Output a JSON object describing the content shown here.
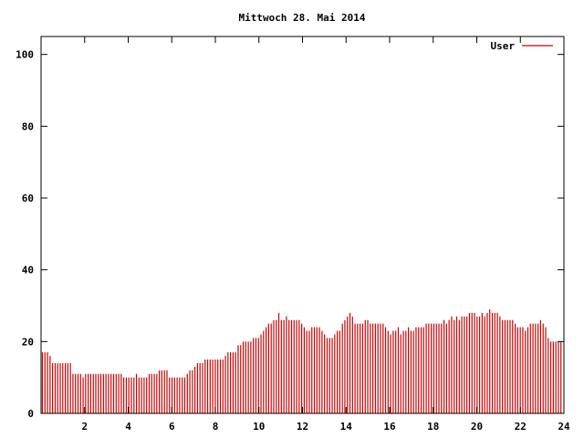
{
  "chart_data": {
    "type": "bar",
    "title": "Mittwoch 28. Mai 2014",
    "xlabel": "",
    "ylabel": "",
    "xlim": [
      0,
      24
    ],
    "ylim": [
      0,
      105
    ],
    "x_ticks": [
      "2",
      "4",
      "6",
      "8",
      "10",
      "12",
      "14",
      "16",
      "18",
      "20",
      "22",
      "24"
    ],
    "y_ticks": [
      "0",
      "20",
      "40",
      "60",
      "80",
      "100"
    ],
    "legend": {
      "position": "top-right",
      "label": "User"
    },
    "grid": false,
    "color": "#cc0000",
    "series": [
      {
        "name": "User",
        "values": [
          17,
          17,
          17,
          16,
          14,
          14,
          14,
          14,
          14,
          14,
          14,
          14,
          11,
          11,
          11,
          11,
          10,
          11,
          11,
          11,
          11,
          11,
          11,
          11,
          11,
          11,
          11,
          11,
          11,
          11,
          11,
          11,
          10,
          10,
          10,
          10,
          10,
          11,
          10,
          10,
          10,
          10,
          11,
          11,
          11,
          11,
          12,
          12,
          12,
          12,
          10,
          10,
          10,
          10,
          10,
          10,
          10,
          11,
          12,
          12,
          13,
          14,
          14,
          14,
          15,
          15,
          15,
          15,
          15,
          15,
          15,
          15,
          16,
          17,
          17,
          17,
          17,
          19,
          19,
          20,
          20,
          20,
          20,
          21,
          21,
          21,
          22,
          23,
          24,
          25,
          25,
          26,
          26,
          28,
          26,
          26,
          27,
          26,
          26,
          26,
          26,
          26,
          25,
          24,
          23,
          23,
          24,
          24,
          24,
          24,
          23,
          22,
          21,
          21,
          21,
          22,
          23,
          23,
          25,
          26,
          27,
          28,
          27,
          25,
          25,
          25,
          25,
          26,
          26,
          25,
          25,
          25,
          25,
          25,
          25,
          24,
          23,
          22,
          23,
          23,
          24,
          22,
          23,
          23,
          24,
          23,
          23,
          24,
          24,
          24,
          24,
          25,
          25,
          25,
          25,
          25,
          25,
          25,
          26,
          25,
          26,
          27,
          26,
          27,
          26,
          27,
          27,
          27,
          28,
          28,
          28,
          27,
          27,
          28,
          27,
          28,
          29,
          28,
          28,
          28,
          27,
          26,
          26,
          26,
          26,
          26,
          25,
          24,
          24,
          24,
          23,
          24,
          25,
          25,
          25,
          25,
          26,
          25,
          24,
          21,
          20,
          20,
          20,
          20,
          20
        ]
      }
    ]
  }
}
